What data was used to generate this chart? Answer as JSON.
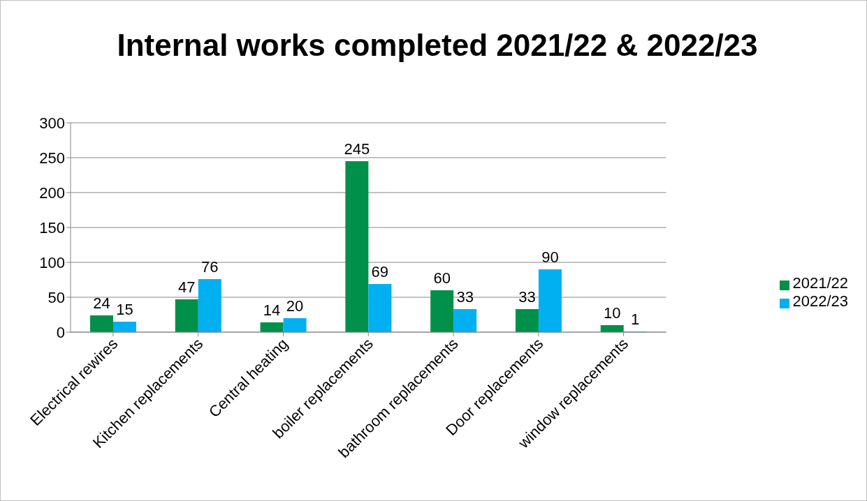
{
  "chart_data": {
    "type": "bar",
    "title": "Internal works completed  2021/22 & 2022/23",
    "categories": [
      "Electrical rewires",
      "Kitchen replacements",
      "Central heating",
      "boiler replacements",
      "bathroom replacements",
      "Door replacements",
      "window replacements"
    ],
    "series": [
      {
        "name": "2021/22",
        "color": "#00904a",
        "values": [
          24,
          47,
          14,
          245,
          60,
          33,
          10
        ]
      },
      {
        "name": "2022/23",
        "color": "#00b0f0",
        "values": [
          15,
          76,
          20,
          69,
          33,
          90,
          1
        ]
      }
    ],
    "ylim": [
      0,
      300
    ],
    "yticks": [
      0,
      50,
      100,
      150,
      200,
      250,
      300
    ],
    "grid": "y",
    "legend": "right",
    "data_labels": true
  }
}
